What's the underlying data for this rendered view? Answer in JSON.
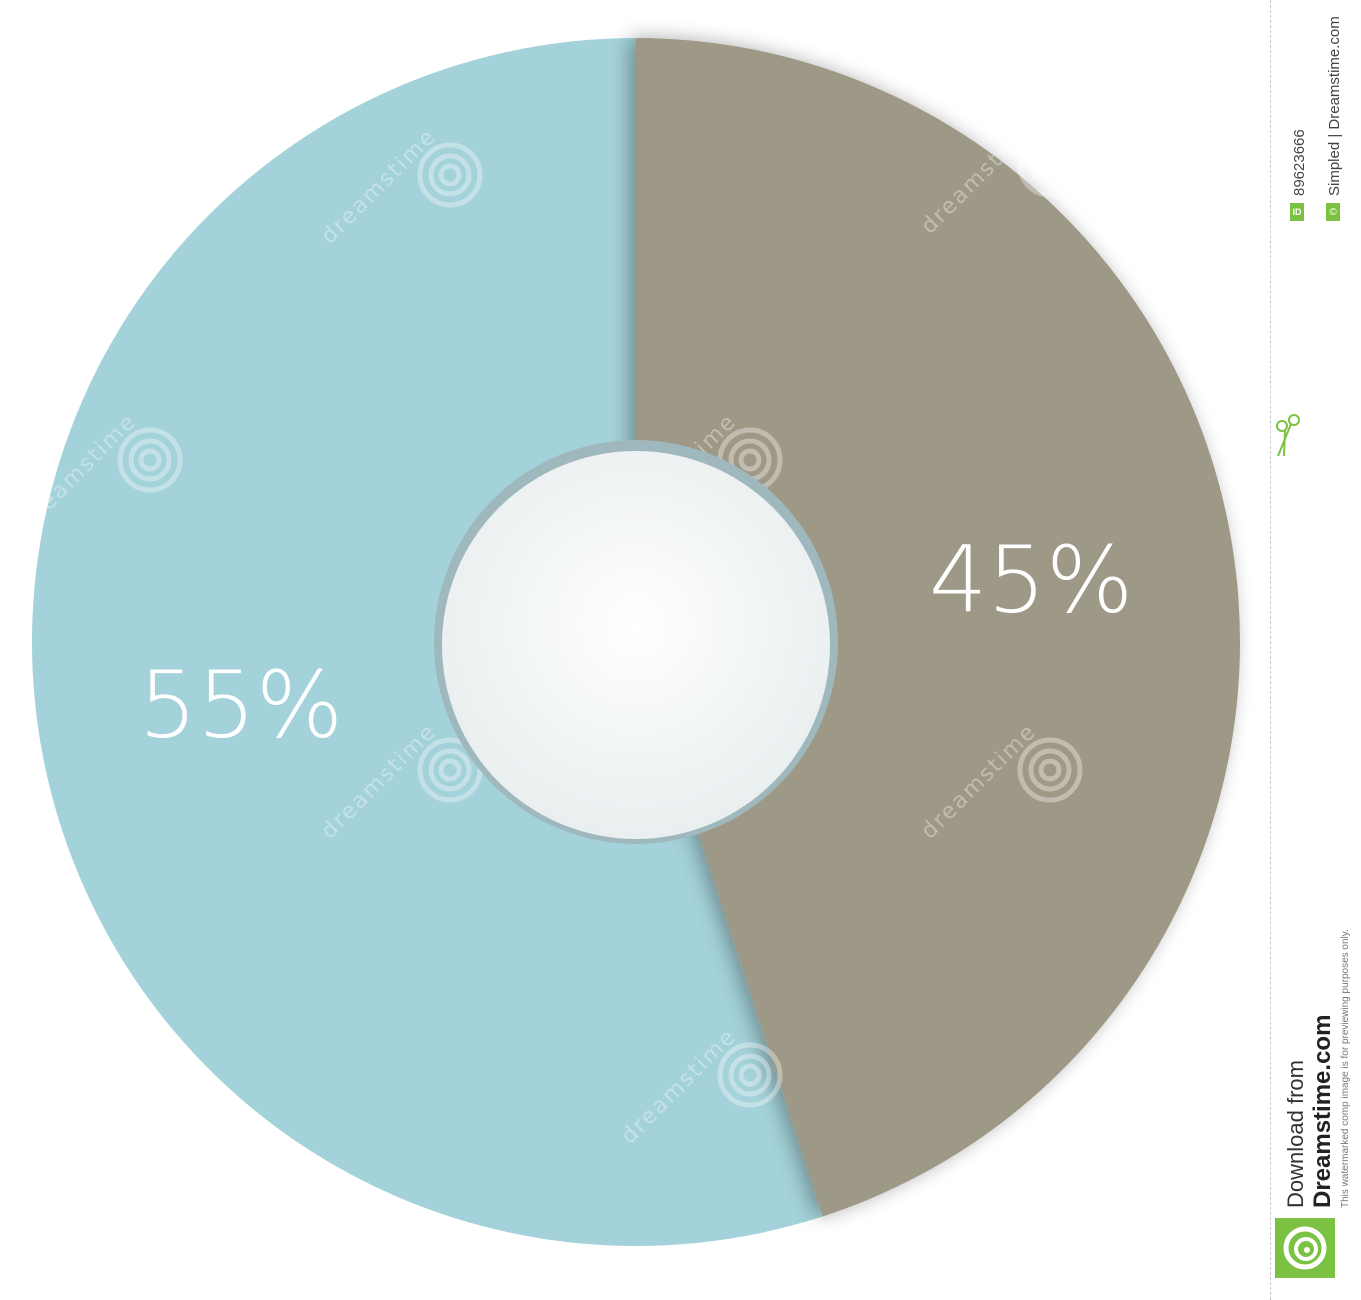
{
  "chart_data": {
    "type": "pie",
    "donut": true,
    "slices": [
      {
        "label": "45%",
        "value": 45,
        "color": "#9e9886"
      },
      {
        "label": "55%",
        "value": 55,
        "color": "#a4d2da"
      }
    ],
    "title": "",
    "legend": "none"
  },
  "watermark": {
    "text": "dreamstime"
  },
  "sidebar": {
    "image_id": "89623666",
    "id_badge": "ID",
    "copyright_badge": "©",
    "credit": "Simpled | Dreamstime.com",
    "disclaimer": "This watermarked comp image is for previewing purposes only.",
    "download_line1": "Download from",
    "download_line2": "Dreamstime.com"
  },
  "colors": {
    "center": "#f4f6f6",
    "center_ring": "#8aa3aa",
    "brand_green": "#7cc242"
  },
  "icons": [
    "scissors-icon",
    "dreamstime-logo-icon",
    "copyright-icon"
  ]
}
